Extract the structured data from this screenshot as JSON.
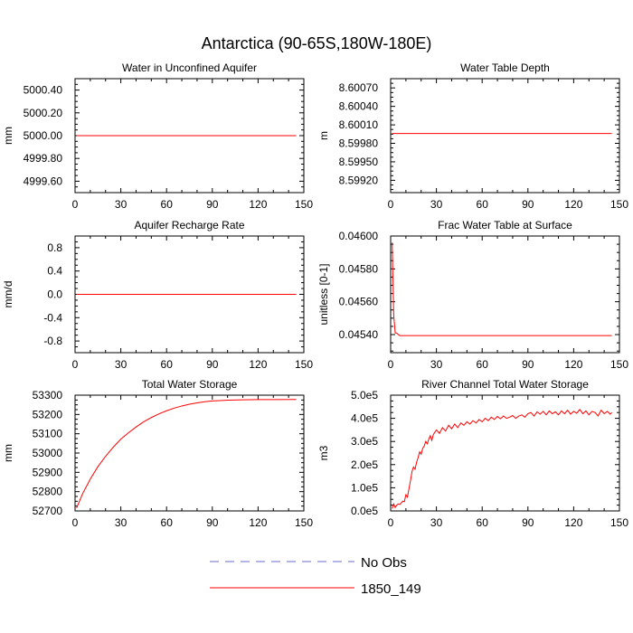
{
  "title": "Antarctica (90-65S,180W-180E)",
  "chart_data": [
    {
      "type": "line",
      "title": "Water in Unconfined Aquifer",
      "ylabel": "mm",
      "xlim": [
        0,
        150
      ],
      "xticks": [
        "0",
        "30",
        "60",
        "90",
        "120",
        "150"
      ],
      "ylim": [
        4999.5,
        5000.5
      ],
      "yticks": [
        {
          "v": 5000.4,
          "label": "5000.40"
        },
        {
          "v": 5000.2,
          "label": "5000.20"
        },
        {
          "v": 5000.0,
          "label": "5000.00"
        },
        {
          "v": 4999.8,
          "label": "4999.80"
        },
        {
          "v": 4999.6,
          "label": "4999.60"
        }
      ],
      "series": [
        {
          "name": "1850_149",
          "color": "#ff0000",
          "x": [
            1,
            145
          ],
          "y": [
            5000.0,
            5000.0
          ]
        }
      ]
    },
    {
      "type": "line",
      "title": "Water Table Depth",
      "ylabel": "m",
      "xlim": [
        0,
        150
      ],
      "xticks": [
        "0",
        "30",
        "60",
        "90",
        "120",
        "150"
      ],
      "ylim": [
        8.599,
        8.60085
      ],
      "yticks": [
        {
          "v": 8.6007,
          "label": "8.60070"
        },
        {
          "v": 8.6004,
          "label": "8.60040"
        },
        {
          "v": 8.6001,
          "label": "8.60010"
        },
        {
          "v": 8.5998,
          "label": "8.59980"
        },
        {
          "v": 8.5995,
          "label": "8.59950"
        },
        {
          "v": 8.5992,
          "label": "8.59920"
        }
      ],
      "series": [
        {
          "name": "1850_149",
          "color": "#ff0000",
          "x": [
            1,
            145
          ],
          "y": [
            8.59996,
            8.59996
          ]
        }
      ]
    },
    {
      "type": "line",
      "title": "Aquifer Recharge Rate",
      "ylabel": "mm/d",
      "xlim": [
        0,
        150
      ],
      "xticks": [
        "0",
        "30",
        "60",
        "90",
        "120",
        "150"
      ],
      "ylim": [
        -1.0,
        1.0
      ],
      "yticks": [
        {
          "v": 0.8,
          "label": "0.8"
        },
        {
          "v": 0.4,
          "label": "0.4"
        },
        {
          "v": 0.0,
          "label": "0.0"
        },
        {
          "v": -0.4,
          "label": "-0.4"
        },
        {
          "v": -0.8,
          "label": "-0.8"
        }
      ],
      "series": [
        {
          "name": "1850_149",
          "color": "#ff0000",
          "x": [
            1,
            145
          ],
          "y": [
            0.0,
            0.0
          ]
        }
      ]
    },
    {
      "type": "line",
      "title": "Frac Water Table at Surface",
      "ylabel": "unitless [0-1]",
      "xlim": [
        0,
        150
      ],
      "xticks": [
        "0",
        "30",
        "60",
        "90",
        "120",
        "150"
      ],
      "ylim": [
        0.04529,
        0.046
      ],
      "yticks": [
        {
          "v": 0.046,
          "label": "0.04600"
        },
        {
          "v": 0.0458,
          "label": "0.04580"
        },
        {
          "v": 0.0456,
          "label": "0.04560"
        },
        {
          "v": 0.0454,
          "label": "0.04540"
        }
      ],
      "series": [
        {
          "name": "1850_149",
          "color": "#ff0000",
          "x": [
            1,
            2,
            3,
            4,
            5,
            6,
            145
          ],
          "y": [
            0.04596,
            0.04552,
            0.04541,
            0.04541,
            0.0454,
            0.045394,
            0.045394
          ]
        }
      ]
    },
    {
      "type": "line",
      "title": "Total Water Storage",
      "ylabel": "mm",
      "xlim": [
        0,
        150
      ],
      "xticks": [
        "0",
        "30",
        "60",
        "90",
        "120",
        "150"
      ],
      "ylim": [
        52700,
        53300
      ],
      "yticks": [
        {
          "v": 53300,
          "label": "53300"
        },
        {
          "v": 53200,
          "label": "53200"
        },
        {
          "v": 53100,
          "label": "53100"
        },
        {
          "v": 53000,
          "label": "53000"
        },
        {
          "v": 52900,
          "label": "52900"
        },
        {
          "v": 52800,
          "label": "52800"
        },
        {
          "v": 52700,
          "label": "52700"
        }
      ],
      "series": [
        {
          "name": "1850_149",
          "color": "#ff0000",
          "x": [
            1,
            5,
            10,
            15,
            20,
            25,
            30,
            35,
            40,
            45,
            50,
            55,
            60,
            65,
            70,
            75,
            80,
            85,
            90,
            95,
            100,
            110,
            120,
            130,
            145
          ],
          "y": [
            52715,
            52790,
            52865,
            52930,
            52983,
            53030,
            53072,
            53105,
            53135,
            53162,
            53184,
            53203,
            53219,
            53233,
            53244,
            53253,
            53260,
            53266,
            53270,
            53272,
            53274,
            53276,
            53277,
            53277,
            53278
          ]
        }
      ]
    },
    {
      "type": "line",
      "title": "River Channel Total Water Storage",
      "ylabel": "m3",
      "xlim": [
        0,
        150
      ],
      "xticks": [
        "0",
        "30",
        "60",
        "90",
        "120",
        "150"
      ],
      "ylim": [
        0,
        500000
      ],
      "yticks": [
        {
          "v": 500000,
          "label": "5.0e5"
        },
        {
          "v": 400000,
          "label": "4.0e5"
        },
        {
          "v": 300000,
          "label": "3.0e5"
        },
        {
          "v": 200000,
          "label": "2.0e5"
        },
        {
          "v": 100000,
          "label": "1.0e5"
        },
        {
          "v": 0,
          "label": "0.0e5"
        }
      ],
      "series": [
        {
          "name": "1850_149",
          "color": "#ff0000",
          "x": [
            1,
            2,
            3,
            4,
            5,
            6,
            7,
            8,
            9,
            10,
            11,
            12,
            13,
            14,
            15,
            16,
            17,
            18,
            19,
            20,
            21,
            22,
            23,
            24,
            25,
            26,
            27,
            28,
            29,
            30,
            32,
            34,
            36,
            38,
            40,
            42,
            44,
            46,
            48,
            50,
            52,
            54,
            56,
            58,
            60,
            62,
            64,
            66,
            68,
            70,
            72,
            74,
            76,
            78,
            80,
            82,
            84,
            86,
            88,
            90,
            92,
            94,
            96,
            98,
            100,
            102,
            104,
            106,
            108,
            110,
            112,
            114,
            116,
            118,
            120,
            122,
            124,
            126,
            128,
            130,
            132,
            134,
            136,
            138,
            140,
            142,
            144,
            145
          ],
          "y": [
            10000,
            30000,
            15000,
            25000,
            30000,
            28000,
            35000,
            42000,
            40000,
            70000,
            60000,
            95000,
            130000,
            170000,
            190000,
            180000,
            210000,
            230000,
            255000,
            245000,
            270000,
            280000,
            300000,
            290000,
            310000,
            325000,
            305000,
            330000,
            340000,
            350000,
            335000,
            360000,
            345000,
            370000,
            355000,
            375000,
            360000,
            380000,
            370000,
            385000,
            375000,
            390000,
            380000,
            395000,
            385000,
            400000,
            390000,
            405000,
            395000,
            408000,
            398000,
            410000,
            400000,
            405000,
            412000,
            400000,
            410000,
            415000,
            405000,
            420000,
            425000,
            410000,
            428000,
            418000,
            430000,
            415000,
            432000,
            420000,
            428000,
            415000,
            432000,
            420000,
            435000,
            418000,
            430000,
            422000,
            438000,
            420000,
            432000,
            415000,
            430000,
            425000,
            410000,
            435000,
            420000,
            430000,
            418000,
            425000
          ]
        }
      ]
    }
  ],
  "legend": [
    {
      "label": "No Obs",
      "color": "#6a6acc",
      "dash": true
    },
    {
      "label": "1850_149",
      "color": "#ff0000",
      "dash": false
    }
  ]
}
